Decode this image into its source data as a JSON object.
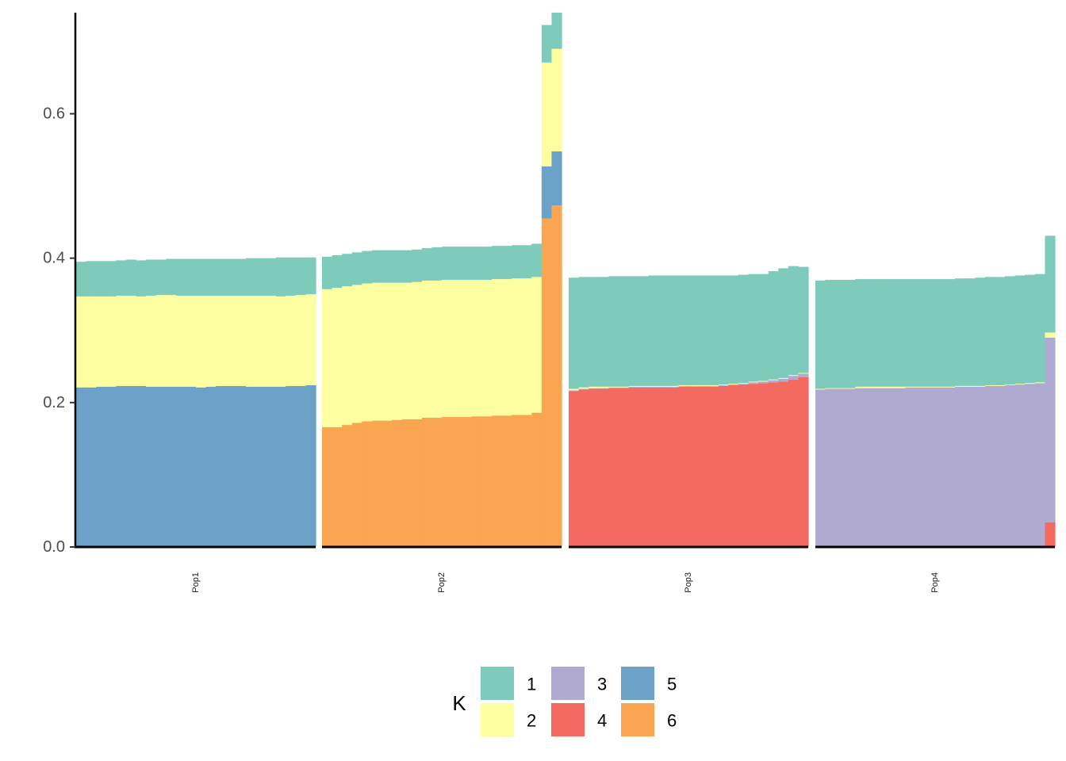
{
  "chart_data": {
    "type": "bar",
    "stacked": true,
    "title": "",
    "xlabel": "",
    "ylabel": "",
    "ylim": [
      0,
      0.74
    ],
    "yticks": [
      0.0,
      0.2,
      0.4,
      0.6
    ],
    "ytick_labels": [
      "0.0",
      "0.2",
      "0.4",
      "0.6"
    ],
    "grid": false,
    "legend": {
      "title": "K",
      "position": "bottom",
      "entries": [
        {
          "key": "1",
          "label": "1",
          "color": "#7fcbbb"
        },
        {
          "key": "3",
          "label": "3",
          "color": "#b0aad0"
        },
        {
          "key": "5",
          "label": "5",
          "color": "#6ca1c8"
        },
        {
          "key": "2",
          "label": "2",
          "color": "#fdfea0"
        },
        {
          "key": "4",
          "label": "4",
          "color": "#f56a60"
        },
        {
          "key": "6",
          "label": "6",
          "color": "#faa550"
        }
      ]
    },
    "panels": [
      {
        "label": "Pop1",
        "stack_order": [
          "5",
          "2",
          "1"
        ],
        "series": [
          {
            "name": "5",
            "values": [
              0.221,
              0.221,
              0.222,
              0.222,
              0.223,
              0.223,
              0.223,
              0.222,
              0.222,
              0.222,
              0.222,
              0.222,
              0.221,
              0.222,
              0.223,
              0.223,
              0.223,
              0.222,
              0.222,
              0.222,
              0.222,
              0.223,
              0.223,
              0.224
            ]
          },
          {
            "name": "2",
            "values": [
              0.126,
              0.126,
              0.125,
              0.125,
              0.125,
              0.125,
              0.124,
              0.126,
              0.127,
              0.127,
              0.126,
              0.126,
              0.127,
              0.126,
              0.125,
              0.125,
              0.125,
              0.126,
              0.126,
              0.126,
              0.125,
              0.125,
              0.126,
              0.126
            ]
          },
          {
            "name": "1",
            "values": [
              0.048,
              0.049,
              0.049,
              0.049,
              0.049,
              0.05,
              0.05,
              0.05,
              0.049,
              0.05,
              0.051,
              0.051,
              0.051,
              0.051,
              0.051,
              0.051,
              0.051,
              0.052,
              0.052,
              0.052,
              0.054,
              0.053,
              0.052,
              0.051
            ]
          }
        ]
      },
      {
        "label": "Pop2",
        "stack_order": [
          "6",
          "5",
          "2",
          "1"
        ],
        "series": [
          {
            "name": "6",
            "values": [
              0.166,
              0.166,
              0.169,
              0.172,
              0.174,
              0.175,
              0.175,
              0.176,
              0.177,
              0.177,
              0.179,
              0.179,
              0.18,
              0.18,
              0.18,
              0.181,
              0.181,
              0.182,
              0.182,
              0.183,
              0.183,
              0.186,
              0.455,
              0.473
            ]
          },
          {
            "name": "5",
            "values": [
              0,
              0,
              0,
              0,
              0,
              0,
              0,
              0,
              0,
              0,
              0,
              0,
              0,
              0,
              0,
              0,
              0,
              0,
              0,
              0,
              0,
              0,
              0.072,
              0.075
            ]
          },
          {
            "name": "2",
            "values": [
              0.191,
              0.193,
              0.192,
              0.191,
              0.191,
              0.191,
              0.191,
              0.19,
              0.189,
              0.19,
              0.19,
              0.19,
              0.19,
              0.19,
              0.19,
              0.189,
              0.189,
              0.189,
              0.189,
              0.189,
              0.189,
              0.188,
              0.144,
              0.142
            ]
          },
          {
            "name": "1",
            "values": [
              0.045,
              0.045,
              0.045,
              0.045,
              0.045,
              0.045,
              0.045,
              0.045,
              0.045,
              0.045,
              0.045,
              0.046,
              0.046,
              0.046,
              0.046,
              0.046,
              0.046,
              0.046,
              0.046,
              0.046,
              0.046,
              0.046,
              0.052,
              0.05
            ]
          }
        ]
      },
      {
        "label": "Pop3",
        "stack_order": [
          "4",
          "3",
          "2",
          "1"
        ],
        "series": [
          {
            "name": "4",
            "values": [
              0.216,
              0.218,
              0.219,
              0.219,
              0.22,
              0.22,
              0.221,
              0.221,
              0.221,
              0.221,
              0.221,
              0.222,
              0.222,
              0.222,
              0.222,
              0.223,
              0.224,
              0.225,
              0.226,
              0.227,
              0.228,
              0.229,
              0.232,
              0.235
            ]
          },
          {
            "name": "3",
            "values": [
              0.001,
              0.001,
              0.001,
              0.001,
              0.001,
              0.001,
              0.001,
              0.001,
              0.001,
              0.001,
              0.001,
              0.001,
              0.001,
              0.001,
              0.001,
              0.001,
              0.001,
              0.001,
              0.002,
              0.002,
              0.003,
              0.004,
              0.005,
              0.005
            ]
          },
          {
            "name": "2",
            "values": [
              0.002,
              0.002,
              0.002,
              0.002,
              0.001,
              0.001,
              0.001,
              0.001,
              0.001,
              0.001,
              0.001,
              0.001,
              0.001,
              0.001,
              0.001,
              0.001,
              0.001,
              0.001,
              0.001,
              0.001,
              0.001,
              0.001,
              0.001,
              0.001
            ]
          },
          {
            "name": "1",
            "values": [
              0.154,
              0.153,
              0.152,
              0.152,
              0.153,
              0.153,
              0.152,
              0.152,
              0.153,
              0.153,
              0.153,
              0.152,
              0.152,
              0.152,
              0.152,
              0.151,
              0.15,
              0.15,
              0.149,
              0.148,
              0.15,
              0.152,
              0.151,
              0.147
            ]
          }
        ]
      },
      {
        "label": "Pop4",
        "stack_order": [
          "4",
          "3",
          "2",
          "1"
        ],
        "series": [
          {
            "name": "4",
            "values": [
              0,
              0,
              0,
              0,
              0,
              0,
              0,
              0,
              0,
              0,
              0,
              0,
              0,
              0,
              0,
              0,
              0,
              0,
              0,
              0,
              0,
              0,
              0,
              0.034
            ]
          },
          {
            "name": "3",
            "values": [
              0.218,
              0.219,
              0.219,
              0.219,
              0.22,
              0.22,
              0.22,
              0.22,
              0.22,
              0.221,
              0.221,
              0.221,
              0.221,
              0.221,
              0.222,
              0.222,
              0.222,
              0.223,
              0.223,
              0.224,
              0.225,
              0.226,
              0.227,
              0.256
            ]
          },
          {
            "name": "2",
            "values": [
              0.001,
              0.001,
              0.001,
              0.001,
              0.002,
              0.002,
              0.002,
              0.002,
              0.002,
              0.001,
              0.001,
              0.001,
              0.001,
              0.001,
              0.001,
              0.001,
              0.001,
              0.001,
              0.001,
              0.001,
              0.001,
              0.001,
              0.001,
              0.007
            ]
          },
          {
            "name": "1",
            "values": [
              0.15,
              0.15,
              0.15,
              0.15,
              0.149,
              0.149,
              0.149,
              0.149,
              0.149,
              0.149,
              0.149,
              0.149,
              0.149,
              0.149,
              0.149,
              0.149,
              0.15,
              0.15,
              0.15,
              0.15,
              0.15,
              0.15,
              0.15,
              0.134
            ]
          }
        ]
      }
    ]
  }
}
